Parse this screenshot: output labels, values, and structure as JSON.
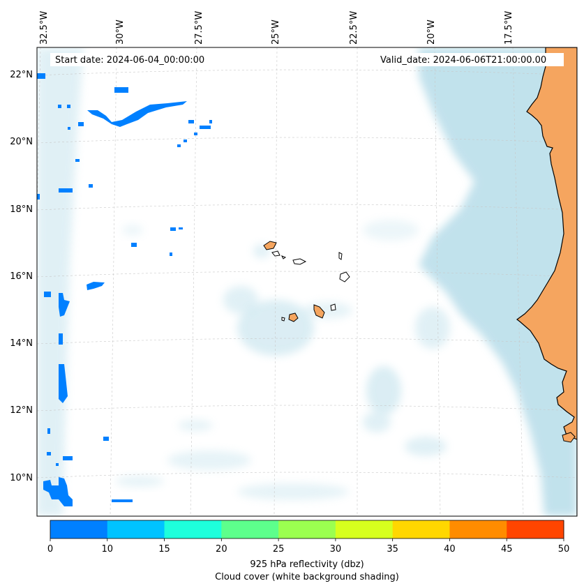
{
  "map": {
    "start_label": "Start date: 2024-06-04_00:00:00",
    "valid_label": "Valid_date: 2024-06-06T21:00:00.00",
    "lon_labels": [
      "32.5°W",
      "30°W",
      "27.5°W",
      "25°W",
      "22.5°W",
      "20°W",
      "17.5°W"
    ],
    "lat_labels": [
      "22°N",
      "20°N",
      "18°N",
      "16°N",
      "14°N",
      "12°N",
      "10°N"
    ],
    "colors": {
      "land": "#f5a55f",
      "cloud": "#add8e6",
      "coast": "#000000",
      "gridline": "#c8c8c8"
    }
  },
  "colorbar": {
    "title_line1": "925 hPa reflectivity (dbz)",
    "title_line2": "Cloud cover (white background shading)",
    "ticks": [
      "0",
      "10",
      "15",
      "20",
      "25",
      "30",
      "35",
      "40",
      "45",
      "50"
    ],
    "colors": [
      "#0080ff",
      "#00c3ff",
      "#1effdc",
      "#5dff8c",
      "#9bff50",
      "#d7ff1e",
      "#ffd700",
      "#ff8c00",
      "#ff4500"
    ]
  }
}
